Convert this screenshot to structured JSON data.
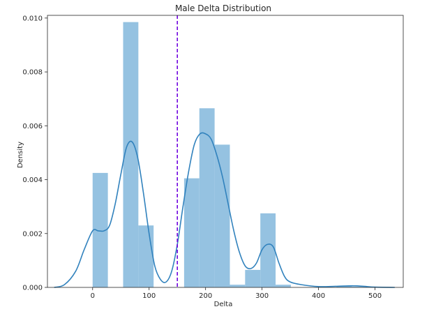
{
  "chart_data": {
    "type": "bar",
    "title": "Male Delta Distribution",
    "xlabel": "Delta",
    "ylabel": "Density",
    "xlim": [
      -80,
      550
    ],
    "ylim": [
      0,
      0.0101
    ],
    "x_ticks": [
      0,
      100,
      200,
      300,
      400,
      500
    ],
    "y_ticks": [
      0.0,
      0.002,
      0.004,
      0.006,
      0.008,
      0.01
    ],
    "y_tick_labels": [
      "0.000",
      "0.002",
      "0.004",
      "0.006",
      "0.008",
      "0.010"
    ],
    "grid": false,
    "histogram": {
      "bin_width": 27,
      "bins": [
        {
          "x0": 0,
          "x1": 27,
          "density": 0.00425
        },
        {
          "x0": 27,
          "x1": 54,
          "density": 0.0
        },
        {
          "x0": 54,
          "x1": 81,
          "density": 0.00985
        },
        {
          "x0": 81,
          "x1": 108,
          "density": 0.0023
        },
        {
          "x0": 108,
          "x1": 135,
          "density": 0.0
        },
        {
          "x0": 135,
          "x1": 162,
          "density": 0.0
        },
        {
          "x0": 162,
          "x1": 189,
          "density": 0.00405
        },
        {
          "x0": 189,
          "x1": 216,
          "density": 0.00665
        },
        {
          "x0": 216,
          "x1": 243,
          "density": 0.0053
        },
        {
          "x0": 243,
          "x1": 270,
          "density": 0.0001
        },
        {
          "x0": 270,
          "x1": 297,
          "density": 0.00065
        },
        {
          "x0": 297,
          "x1": 324,
          "density": 0.00275
        },
        {
          "x0": 324,
          "x1": 351,
          "density": 0.0001
        },
        {
          "x0": 351,
          "x1": 378,
          "density": 0.0
        },
        {
          "x0": 378,
          "x1": 405,
          "density": 0.0
        },
        {
          "x0": 405,
          "x1": 432,
          "density": 0.0
        },
        {
          "x0": 432,
          "x1": 459,
          "density": 5e-05
        },
        {
          "x0": 459,
          "x1": 486,
          "density": 3e-05
        }
      ]
    },
    "kde": {
      "x": [
        -68,
        -50,
        -30,
        -15,
        0,
        10,
        20,
        30,
        40,
        50,
        60,
        70,
        80,
        90,
        100,
        110,
        120,
        130,
        140,
        150,
        160,
        170,
        180,
        190,
        200,
        210,
        220,
        230,
        240,
        250,
        260,
        270,
        280,
        290,
        300,
        310,
        320,
        330,
        340,
        350,
        370,
        400,
        430,
        460,
        480,
        500,
        535
      ],
      "y": [
        0.0,
        0.0001,
        0.0006,
        0.0014,
        0.0021,
        0.0021,
        0.0021,
        0.0023,
        0.0031,
        0.0042,
        0.0052,
        0.0054,
        0.0048,
        0.0035,
        0.002,
        0.0008,
        0.0003,
        0.0002,
        0.0006,
        0.0016,
        0.003,
        0.0043,
        0.0053,
        0.0057,
        0.0057,
        0.0055,
        0.0049,
        0.0041,
        0.0031,
        0.0021,
        0.0013,
        0.0008,
        0.0007,
        0.0009,
        0.0014,
        0.0016,
        0.0015,
        0.0009,
        0.0004,
        0.0002,
        0.0001,
        3e-05,
        4e-05,
        6e-05,
        4e-05,
        1e-05,
        0.0
      ]
    },
    "vline": {
      "x": 150,
      "style": "dashed"
    },
    "colors": {
      "bars": "#8fbfdf",
      "kde": "#3182bd",
      "vline": "#6f00e0",
      "axes": "#262626"
    }
  }
}
